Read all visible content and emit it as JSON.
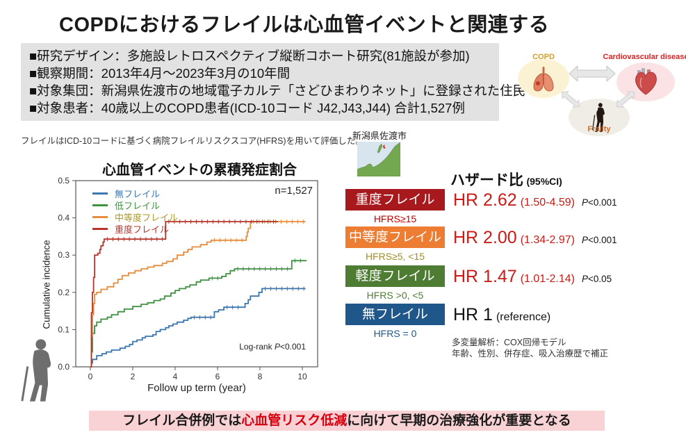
{
  "title": "COPDにおけるフレイルは心血管イベントと関連する",
  "info_box": {
    "lines": [
      "■研究デザイン：多施設レトロスペクティブ縦断コホート研究(81施設が参加)",
      "■観察期間：2013年4月～2023年3月の10年間",
      "■対象集団：新潟県佐渡市の地域電子カルテ「さどひまわりネット」に登録された住民",
      "■対象患者：40歳以上のCOPD患者(ICD-10コード J42,J43,J44) 合計1,527例"
    ]
  },
  "diagram": {
    "copd_label": "COPD",
    "copd_color": "#D29E24",
    "cvd_label": "Cardiovascular disease",
    "cvd_color": "#E02020",
    "frailty_label": "Frailty",
    "frailty_color": "#C96A2A"
  },
  "note": "フレイルはICD-10コードに基づく病院フレイルリスクスコア(HFRS)を用いて評価した。",
  "map": {
    "label": "新潟県佐渡市"
  },
  "chart_data": {
    "type": "line",
    "subtype": "kaplan-meier-step",
    "title": "心血管イベントの累積発症割合",
    "xlabel": "Follow up term (year)",
    "ylabel": "Cumulative incidence",
    "xlim": [
      0,
      10.3
    ],
    "ylim": [
      0,
      0.5
    ],
    "xticks": [
      0,
      2,
      4,
      6,
      8,
      10
    ],
    "yticks": [
      0.0,
      0.1,
      0.2,
      0.3,
      0.4,
      0.5
    ],
    "grid": false,
    "legend_position": "upper-left-inside",
    "annotations": {
      "n": "n=1,527",
      "logrank_prefix": "Log-rank ",
      "logrank_p": "P",
      "logrank_value": "<0.001"
    },
    "series": [
      {
        "name": "無フレイル",
        "color": "#3B76AF",
        "label_color": "#3B76AF",
        "points": [
          [
            0,
            0
          ],
          [
            0.05,
            0.01
          ],
          [
            0.1,
            0.02
          ],
          [
            0.3,
            0.03
          ],
          [
            0.55,
            0.035
          ],
          [
            0.75,
            0.04
          ],
          [
            1.0,
            0.045
          ],
          [
            1.4,
            0.05
          ],
          [
            1.65,
            0.055
          ],
          [
            1.85,
            0.06
          ],
          [
            2.0,
            0.068
          ],
          [
            2.2,
            0.072
          ],
          [
            2.45,
            0.078
          ],
          [
            2.6,
            0.082
          ],
          [
            2.95,
            0.086
          ],
          [
            3.1,
            0.095
          ],
          [
            3.3,
            0.1
          ],
          [
            3.55,
            0.105
          ],
          [
            3.7,
            0.11
          ],
          [
            3.9,
            0.115
          ],
          [
            4.1,
            0.12
          ],
          [
            4.4,
            0.125
          ],
          [
            4.6,
            0.13
          ],
          [
            4.75,
            0.133
          ],
          [
            5.85,
            0.148
          ],
          [
            6.05,
            0.153
          ],
          [
            6.3,
            0.16
          ],
          [
            7.3,
            0.17
          ],
          [
            7.45,
            0.18
          ],
          [
            7.55,
            0.19
          ],
          [
            7.95,
            0.2
          ],
          [
            8.1,
            0.21
          ],
          [
            10.15,
            0.21
          ]
        ]
      },
      {
        "name": "低フレイル",
        "color": "#3F9142",
        "label_color": "#3F9142",
        "points": [
          [
            0,
            0
          ],
          [
            0.05,
            0.04
          ],
          [
            0.1,
            0.09
          ],
          [
            0.2,
            0.11
          ],
          [
            0.3,
            0.12
          ],
          [
            0.5,
            0.128
          ],
          [
            0.8,
            0.133
          ],
          [
            1.0,
            0.14
          ],
          [
            1.3,
            0.148
          ],
          [
            1.6,
            0.155
          ],
          [
            2.0,
            0.162
          ],
          [
            2.4,
            0.168
          ],
          [
            2.7,
            0.172
          ],
          [
            3.0,
            0.178
          ],
          [
            3.3,
            0.182
          ],
          [
            3.5,
            0.19
          ],
          [
            3.8,
            0.198
          ],
          [
            4.0,
            0.205
          ],
          [
            4.2,
            0.21
          ],
          [
            4.5,
            0.215
          ],
          [
            4.7,
            0.22
          ],
          [
            5.0,
            0.228
          ],
          [
            5.2,
            0.233
          ],
          [
            5.6,
            0.238
          ],
          [
            6.2,
            0.243
          ],
          [
            6.4,
            0.25
          ],
          [
            6.6,
            0.258
          ],
          [
            6.8,
            0.263
          ],
          [
            9.45,
            0.263
          ],
          [
            9.5,
            0.285
          ],
          [
            10.2,
            0.285
          ]
        ]
      },
      {
        "name": "中等度フレイル",
        "color": "#E78C3C",
        "label_color": "#A89A30",
        "points": [
          [
            0,
            0
          ],
          [
            0.05,
            0.08
          ],
          [
            0.1,
            0.14
          ],
          [
            0.15,
            0.17
          ],
          [
            0.2,
            0.195
          ],
          [
            0.3,
            0.2
          ],
          [
            0.5,
            0.208
          ],
          [
            0.8,
            0.215
          ],
          [
            1.1,
            0.225
          ],
          [
            1.3,
            0.235
          ],
          [
            1.5,
            0.245
          ],
          [
            1.8,
            0.252
          ],
          [
            2.1,
            0.258
          ],
          [
            2.4,
            0.263
          ],
          [
            2.7,
            0.268
          ],
          [
            3.0,
            0.272
          ],
          [
            3.4,
            0.278
          ],
          [
            3.6,
            0.283
          ],
          [
            3.9,
            0.29
          ],
          [
            4.1,
            0.3
          ],
          [
            4.4,
            0.308
          ],
          [
            4.6,
            0.315
          ],
          [
            4.8,
            0.322
          ],
          [
            5.2,
            0.328
          ],
          [
            5.5,
            0.335
          ],
          [
            5.7,
            0.34
          ],
          [
            7.3,
            0.34
          ],
          [
            7.35,
            0.35
          ],
          [
            7.4,
            0.362
          ],
          [
            7.45,
            0.372
          ],
          [
            7.55,
            0.39
          ],
          [
            10.15,
            0.39
          ]
        ]
      },
      {
        "name": "重度フレイル",
        "color": "#B8342B",
        "label_color": "#B8342B",
        "points": [
          [
            0,
            0
          ],
          [
            0.05,
            0.145
          ],
          [
            0.1,
            0.2
          ],
          [
            0.15,
            0.24
          ],
          [
            0.2,
            0.3
          ],
          [
            0.35,
            0.305
          ],
          [
            0.45,
            0.315
          ],
          [
            0.5,
            0.325
          ],
          [
            0.6,
            0.335
          ],
          [
            0.65,
            0.343
          ],
          [
            3.5,
            0.343
          ],
          [
            3.55,
            0.39
          ],
          [
            8.85,
            0.39
          ]
        ]
      }
    ]
  },
  "hazard": {
    "header": "ハザード比",
    "header_sub": "(95%CI)",
    "rows": [
      {
        "label": "重度フレイル",
        "hfrs": "HFRS≥15",
        "hr": "HR 2.62",
        "ci": "(1.50-4.59)",
        "p_label": "P",
        "p_value": "<0.001",
        "box_color": "#A8191D",
        "hfrs_color": "#C00000",
        "hr_color": "#CB1B16",
        "ci_color": "#CB1B16"
      },
      {
        "label": "中等度フレイル",
        "hfrs": "HFRS≥5, <15",
        "hr": "HR 2.00",
        "ci": "(1.34-2.97)",
        "p_label": "P",
        "p_value": "<0.001",
        "box_color": "#EC7D33",
        "hfrs_color": "#A08C28",
        "hr_color": "#CB1B16",
        "ci_color": "#CB1B16"
      },
      {
        "label": "軽度フレイル",
        "hfrs": "HFRS >0, <5",
        "hr": "HR 1.47",
        "ci": "(1.01-2.14)",
        "p_label": "P",
        "p_value": "<0.05",
        "box_color": "#4E7C33",
        "hfrs_color": "#4E7C33",
        "hr_color": "#CB1B16",
        "ci_color": "#CB1B16"
      },
      {
        "label": "無フレイル",
        "hfrs": "HFRS = 0",
        "hr": "HR 1",
        "ci": "(reference)",
        "p_label": "",
        "p_value": "",
        "box_color": "#20578A",
        "hfrs_color": "#20578A",
        "hr_color": "#111111",
        "ci_color": "#111111"
      }
    ],
    "footnote": [
      "多変量解析：COX回帰モデル",
      "年齢、性別、併存症、吸入治療歴で補正"
    ]
  },
  "banner": {
    "part1": "フレイル合併例では",
    "part2": "心血管リスク低減",
    "part3": "に向けて早期の治療強化が重要となる",
    "highlight_color": "#D7000F",
    "bg_color": "#F9D2D5"
  }
}
